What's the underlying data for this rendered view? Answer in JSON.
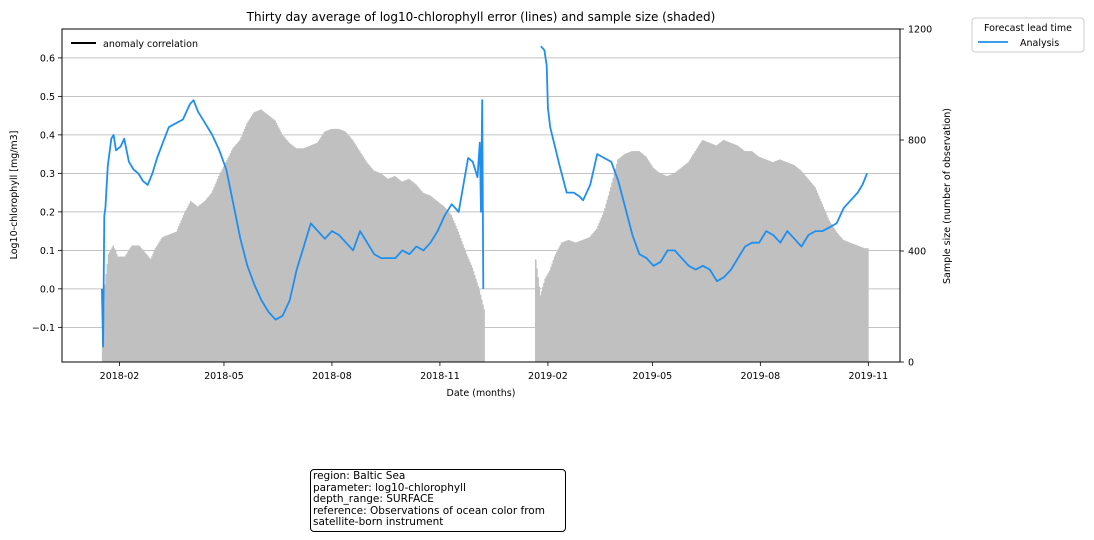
{
  "chart_data": {
    "type": "line",
    "title": "Thirty day average of log10-chlorophyll error (lines) and sample size (shaded)",
    "xlabel": "Date (months)",
    "ylabel": "Log10-chlorophyll [mg/m3]",
    "y2label": "Sample size (number of observation)",
    "xlim": [
      "2017-12-14",
      "2019-11-28"
    ],
    "ylim": [
      -0.19,
      0.675
    ],
    "y2lim": [
      0,
      1200
    ],
    "x_ticks": [
      "2018-02",
      "2018-05",
      "2018-08",
      "2018-11",
      "2019-02",
      "2019-05",
      "2019-08",
      "2019-11"
    ],
    "y_ticks": [
      "−0.1",
      "0.0",
      "0.1",
      "0.2",
      "0.3",
      "0.4",
      "0.5",
      "0.6"
    ],
    "y2_ticks": [
      "0",
      "400",
      "800",
      "1200"
    ],
    "grid": true,
    "legend_left": {
      "placement": "upper-left",
      "label": "anomaly correlation",
      "color": "#000000"
    },
    "legend_right": {
      "placement": "outside-upper-right",
      "title": "Forecast lead time",
      "label": "Analysis",
      "color": "#1f8fee"
    },
    "series": [
      {
        "name": "Analysis",
        "color": "#1f8fee",
        "points": [
          [
            "2018-01-17",
            0.0
          ],
          [
            "2018-01-18",
            -0.15
          ],
          [
            "2018-01-19",
            0.19
          ],
          [
            "2018-01-20",
            0.21
          ],
          [
            "2018-01-22",
            0.32
          ],
          [
            "2018-01-25",
            0.39
          ],
          [
            "2018-01-27",
            0.4
          ],
          [
            "2018-01-29",
            0.36
          ],
          [
            "2018-02-02",
            0.37
          ],
          [
            "2018-02-05",
            0.39
          ],
          [
            "2018-02-09",
            0.33
          ],
          [
            "2018-02-13",
            0.31
          ],
          [
            "2018-02-17",
            0.3
          ],
          [
            "2018-02-21",
            0.28
          ],
          [
            "2018-02-25",
            0.27
          ],
          [
            "2018-03-01",
            0.3
          ],
          [
            "2018-03-05",
            0.34
          ],
          [
            "2018-03-10",
            0.38
          ],
          [
            "2018-03-15",
            0.42
          ],
          [
            "2018-03-21",
            0.43
          ],
          [
            "2018-03-27",
            0.44
          ],
          [
            "2018-04-02",
            0.48
          ],
          [
            "2018-04-05",
            0.49
          ],
          [
            "2018-04-09",
            0.46
          ],
          [
            "2018-04-15",
            0.43
          ],
          [
            "2018-04-21",
            0.4
          ],
          [
            "2018-04-27",
            0.36
          ],
          [
            "2018-05-03",
            0.31
          ],
          [
            "2018-05-09",
            0.22
          ],
          [
            "2018-05-15",
            0.13
          ],
          [
            "2018-05-21",
            0.06
          ],
          [
            "2018-05-27",
            0.01
          ],
          [
            "2018-06-02",
            -0.03
          ],
          [
            "2018-06-08",
            -0.06
          ],
          [
            "2018-06-14",
            -0.08
          ],
          [
            "2018-06-20",
            -0.07
          ],
          [
            "2018-06-26",
            -0.03
          ],
          [
            "2018-07-02",
            0.05
          ],
          [
            "2018-07-08",
            0.11
          ],
          [
            "2018-07-14",
            0.17
          ],
          [
            "2018-07-20",
            0.15
          ],
          [
            "2018-07-26",
            0.13
          ],
          [
            "2018-08-01",
            0.15
          ],
          [
            "2018-08-07",
            0.14
          ],
          [
            "2018-08-13",
            0.12
          ],
          [
            "2018-08-19",
            0.1
          ],
          [
            "2018-08-25",
            0.15
          ],
          [
            "2018-08-31",
            0.12
          ],
          [
            "2018-09-06",
            0.09
          ],
          [
            "2018-09-12",
            0.08
          ],
          [
            "2018-09-18",
            0.08
          ],
          [
            "2018-09-24",
            0.08
          ],
          [
            "2018-09-30",
            0.1
          ],
          [
            "2018-10-06",
            0.09
          ],
          [
            "2018-10-12",
            0.11
          ],
          [
            "2018-10-18",
            0.1
          ],
          [
            "2018-10-24",
            0.12
          ],
          [
            "2018-10-30",
            0.15
          ],
          [
            "2018-11-05",
            0.19
          ],
          [
            "2018-11-11",
            0.22
          ],
          [
            "2018-11-17",
            0.2
          ],
          [
            "2018-11-21",
            0.27
          ],
          [
            "2018-11-25",
            0.34
          ],
          [
            "2018-11-29",
            0.33
          ],
          [
            "2018-12-03",
            0.29
          ],
          [
            "2018-12-05",
            0.38
          ],
          [
            "2018-12-06",
            0.2
          ],
          [
            "2018-12-07",
            0.49
          ],
          [
            "2018-12-08",
            0.0
          ]
        ]
      },
      {
        "name": "Analysis",
        "color": "#1f8fee",
        "points": [
          [
            "2019-01-26",
            0.63
          ],
          [
            "2019-01-29",
            0.62
          ],
          [
            "2019-01-31",
            0.58
          ],
          [
            "2019-02-01",
            0.47
          ],
          [
            "2019-02-03",
            0.42
          ],
          [
            "2019-02-07",
            0.37
          ],
          [
            "2019-02-11",
            0.32
          ],
          [
            "2019-02-17",
            0.25
          ],
          [
            "2019-02-23",
            0.25
          ],
          [
            "2019-02-28",
            0.24
          ],
          [
            "2019-03-03",
            0.23
          ],
          [
            "2019-03-09",
            0.27
          ],
          [
            "2019-03-15",
            0.35
          ],
          [
            "2019-03-21",
            0.34
          ],
          [
            "2019-03-27",
            0.33
          ],
          [
            "2019-04-02",
            0.28
          ],
          [
            "2019-04-08",
            0.21
          ],
          [
            "2019-04-14",
            0.14
          ],
          [
            "2019-04-20",
            0.09
          ],
          [
            "2019-04-26",
            0.08
          ],
          [
            "2019-05-02",
            0.06
          ],
          [
            "2019-05-08",
            0.07
          ],
          [
            "2019-05-14",
            0.1
          ],
          [
            "2019-05-20",
            0.1
          ],
          [
            "2019-05-26",
            0.08
          ],
          [
            "2019-06-01",
            0.06
          ],
          [
            "2019-06-07",
            0.05
          ],
          [
            "2019-06-13",
            0.06
          ],
          [
            "2019-06-19",
            0.05
          ],
          [
            "2019-06-25",
            0.02
          ],
          [
            "2019-07-01",
            0.03
          ],
          [
            "2019-07-07",
            0.05
          ],
          [
            "2019-07-13",
            0.08
          ],
          [
            "2019-07-19",
            0.11
          ],
          [
            "2019-07-25",
            0.12
          ],
          [
            "2019-07-31",
            0.12
          ],
          [
            "2019-08-06",
            0.15
          ],
          [
            "2019-08-12",
            0.14
          ],
          [
            "2019-08-18",
            0.12
          ],
          [
            "2019-08-24",
            0.15
          ],
          [
            "2019-08-30",
            0.13
          ],
          [
            "2019-09-05",
            0.11
          ],
          [
            "2019-09-11",
            0.14
          ],
          [
            "2019-09-17",
            0.15
          ],
          [
            "2019-09-23",
            0.15
          ],
          [
            "2019-09-29",
            0.16
          ],
          [
            "2019-10-05",
            0.17
          ],
          [
            "2019-10-11",
            0.21
          ],
          [
            "2019-10-17",
            0.23
          ],
          [
            "2019-10-23",
            0.25
          ],
          [
            "2019-10-27",
            0.27
          ],
          [
            "2019-10-31",
            0.3
          ]
        ]
      }
    ],
    "sample_size": {
      "color": "#c0c0c0",
      "points": [
        [
          "2018-01-17",
          100
        ],
        [
          "2018-01-19",
          280
        ],
        [
          "2018-01-22",
          390
        ],
        [
          "2018-01-26",
          420
        ],
        [
          "2018-01-30",
          380
        ],
        [
          "2018-02-05",
          380
        ],
        [
          "2018-02-11",
          420
        ],
        [
          "2018-02-17",
          420
        ],
        [
          "2018-02-23",
          390
        ],
        [
          "2018-02-27",
          370
        ],
        [
          "2018-03-03",
          410
        ],
        [
          "2018-03-09",
          450
        ],
        [
          "2018-03-15",
          460
        ],
        [
          "2018-03-21",
          470
        ],
        [
          "2018-03-27",
          530
        ],
        [
          "2018-04-02",
          580
        ],
        [
          "2018-04-08",
          560
        ],
        [
          "2018-04-14",
          580
        ],
        [
          "2018-04-20",
          610
        ],
        [
          "2018-04-26",
          670
        ],
        [
          "2018-05-02",
          720
        ],
        [
          "2018-05-08",
          770
        ],
        [
          "2018-05-14",
          800
        ],
        [
          "2018-05-20",
          860
        ],
        [
          "2018-05-26",
          900
        ],
        [
          "2018-06-01",
          910
        ],
        [
          "2018-06-07",
          890
        ],
        [
          "2018-06-13",
          870
        ],
        [
          "2018-06-19",
          820
        ],
        [
          "2018-06-25",
          790
        ],
        [
          "2018-07-01",
          770
        ],
        [
          "2018-07-07",
          770
        ],
        [
          "2018-07-13",
          780
        ],
        [
          "2018-07-19",
          790
        ],
        [
          "2018-07-25",
          830
        ],
        [
          "2018-07-31",
          840
        ],
        [
          "2018-08-06",
          840
        ],
        [
          "2018-08-12",
          830
        ],
        [
          "2018-08-18",
          800
        ],
        [
          "2018-08-24",
          760
        ],
        [
          "2018-08-30",
          720
        ],
        [
          "2018-09-05",
          690
        ],
        [
          "2018-09-11",
          680
        ],
        [
          "2018-09-17",
          660
        ],
        [
          "2018-09-23",
          670
        ],
        [
          "2018-09-29",
          650
        ],
        [
          "2018-10-05",
          660
        ],
        [
          "2018-10-11",
          640
        ],
        [
          "2018-10-17",
          610
        ],
        [
          "2018-10-23",
          600
        ],
        [
          "2018-10-29",
          580
        ],
        [
          "2018-11-04",
          560
        ],
        [
          "2018-11-10",
          530
        ],
        [
          "2018-11-16",
          470
        ],
        [
          "2018-11-22",
          400
        ],
        [
          "2018-11-28",
          340
        ],
        [
          "2018-12-04",
          260
        ],
        [
          "2018-12-08",
          190
        ],
        [
          "2019-01-21",
          370
        ],
        [
          "2019-01-25",
          240
        ],
        [
          "2019-01-29",
          300
        ],
        [
          "2019-02-02",
          330
        ],
        [
          "2019-02-06",
          380
        ],
        [
          "2019-02-12",
          430
        ],
        [
          "2019-02-18",
          440
        ],
        [
          "2019-02-24",
          430
        ],
        [
          "2019-03-02",
          440
        ],
        [
          "2019-03-08",
          450
        ],
        [
          "2019-03-14",
          480
        ],
        [
          "2019-03-20",
          540
        ],
        [
          "2019-03-26",
          630
        ],
        [
          "2019-04-01",
          730
        ],
        [
          "2019-04-07",
          750
        ],
        [
          "2019-04-13",
          760
        ],
        [
          "2019-04-19",
          760
        ],
        [
          "2019-04-25",
          740
        ],
        [
          "2019-05-01",
          700
        ],
        [
          "2019-05-07",
          680
        ],
        [
          "2019-05-13",
          670
        ],
        [
          "2019-05-19",
          680
        ],
        [
          "2019-05-25",
          700
        ],
        [
          "2019-05-31",
          720
        ],
        [
          "2019-06-06",
          760
        ],
        [
          "2019-06-12",
          800
        ],
        [
          "2019-06-18",
          790
        ],
        [
          "2019-06-24",
          780
        ],
        [
          "2019-06-30",
          800
        ],
        [
          "2019-07-06",
          790
        ],
        [
          "2019-07-12",
          780
        ],
        [
          "2019-07-18",
          760
        ],
        [
          "2019-07-24",
          760
        ],
        [
          "2019-07-30",
          740
        ],
        [
          "2019-08-05",
          730
        ],
        [
          "2019-08-11",
          720
        ],
        [
          "2019-08-17",
          730
        ],
        [
          "2019-08-23",
          720
        ],
        [
          "2019-08-29",
          710
        ],
        [
          "2019-09-04",
          690
        ],
        [
          "2019-09-10",
          660
        ],
        [
          "2019-09-16",
          630
        ],
        [
          "2019-09-22",
          570
        ],
        [
          "2019-09-28",
          510
        ],
        [
          "2019-10-04",
          470
        ],
        [
          "2019-10-10",
          440
        ],
        [
          "2019-10-16",
          430
        ],
        [
          "2019-10-22",
          420
        ],
        [
          "2019-10-28",
          410
        ],
        [
          "2019-10-31",
          410
        ]
      ]
    }
  },
  "info": {
    "lines": [
      "region: Baltic Sea",
      "parameter: log10-chlorophyll",
      "depth_range: SURFACE",
      "reference: Observations of ocean color from",
      "satellite-born instrument"
    ]
  }
}
